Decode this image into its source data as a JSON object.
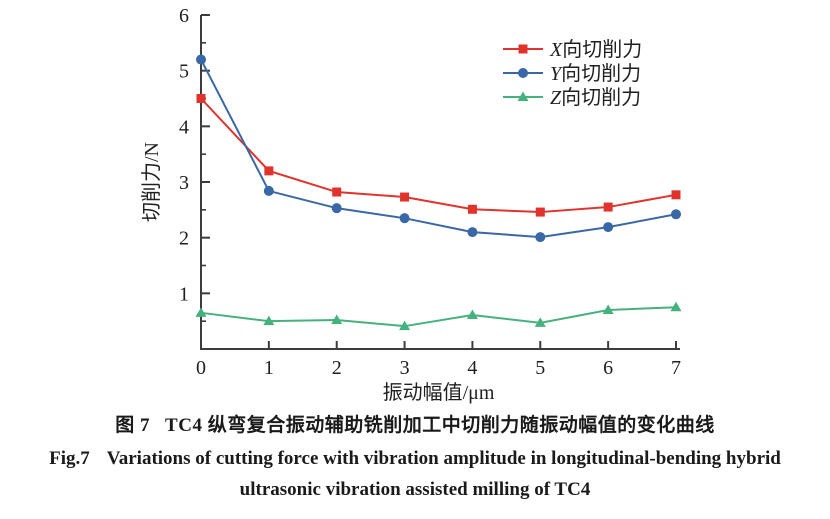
{
  "caption": {
    "zh_label": "图 7",
    "zh_text": "TC4 纵弯复合振动辅助铣削加工中切削力随振动幅值的变化曲线",
    "en_label": "Fig.7",
    "en_line1": "Variations of cutting force with vibration amplitude in longitudinal-bending hybrid",
    "en_line2": "ultrasonic vibration assisted milling of TC4"
  },
  "chart_data": {
    "type": "line",
    "x": [
      0,
      1,
      2,
      3,
      4,
      5,
      6,
      7
    ],
    "series": [
      {
        "name": "X向切削力",
        "marker": "square",
        "color": "#e0332c",
        "values": [
          4.5,
          3.2,
          2.82,
          2.73,
          2.51,
          2.46,
          2.55,
          2.77
        ]
      },
      {
        "name": "Y向切削力",
        "marker": "circle",
        "color": "#3a67a5",
        "values": [
          5.2,
          2.84,
          2.53,
          2.35,
          2.1,
          2.01,
          2.19,
          2.42
        ]
      },
      {
        "name": "Z向切削力",
        "marker": "triangle",
        "color": "#45b17e",
        "values": [
          0.65,
          0.5,
          0.52,
          0.41,
          0.61,
          0.47,
          0.7,
          0.75
        ]
      }
    ],
    "xlabel": "振动幅值/μm",
    "ylabel": "切削力/N",
    "xlim": [
      0,
      7
    ],
    "ylim": [
      0,
      6
    ],
    "x_ticks": [
      0,
      1,
      2,
      3,
      4,
      5,
      6,
      7
    ],
    "y_ticks": [
      1,
      2,
      3,
      4,
      5,
      6
    ],
    "y_minor_ticks": [
      0.5,
      1.5,
      2.5,
      3.5,
      4.5,
      5.5
    ],
    "grid": false,
    "legend_position": "top-right",
    "axis_color": "#3c3c3c"
  }
}
